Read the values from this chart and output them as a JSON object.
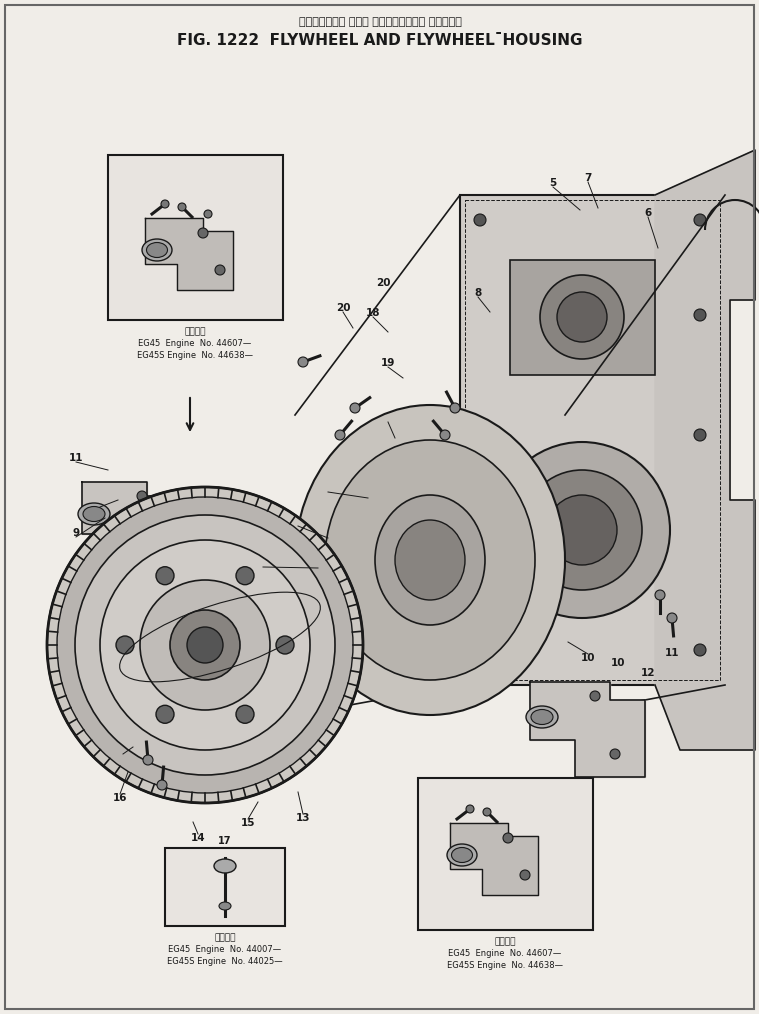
{
  "title_japanese": "フライホイール および フライホイール゚ ハウジング",
  "title_english": "FIG. 1222  FLYWHEEL AND FLYWHEEL¯HOUSING",
  "bg_color": "#f0ede8",
  "line_color": "#1a1a1a",
  "text_color": "#1a1a1a",
  "fig_width": 7.59,
  "fig_height": 10.14,
  "inset1_caption_line1": "適用年式",
  "inset1_caption_line2": "EG45  Engine  No. 44607—",
  "inset1_caption_line3": "EG45S Engine  No. 44638—",
  "inset2_caption_line1": "適用年式",
  "inset2_caption_line2": "EG45  Engine  No. 44007—",
  "inset2_caption_line3": "EG45S Engine  No. 44025—",
  "inset3_caption_line1": "適用年式",
  "inset3_caption_line2": "EG45  Engine  No. 44607—",
  "inset3_caption_line3": "EG45S Engine  No. 44638—"
}
